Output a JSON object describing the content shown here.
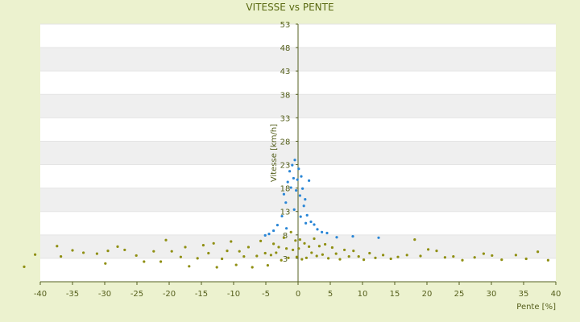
{
  "chart_data": {
    "type": "scatter",
    "title": "VITESSE vs PENTE",
    "xlabel": "Pente [%]",
    "ylabel": "Vitesse [km/h]",
    "xlim": [
      -40,
      40
    ],
    "ylim": [
      -2,
      53
    ],
    "x_ticks": [
      -40,
      -35,
      -30,
      -25,
      -20,
      -15,
      -10,
      -5,
      0,
      5,
      10,
      15,
      20,
      25,
      30,
      35,
      40
    ],
    "y_ticks": [
      3,
      8,
      13,
      18,
      23,
      28,
      33,
      38,
      43,
      48,
      53
    ],
    "colors": {
      "background": "#ecf2cf",
      "plot_white": "#ffffff",
      "plot_band": "#efefef",
      "axis": "#556022",
      "text": "#555f1c",
      "olive_points": "#8f8f12",
      "blue_points": "#2a86d6"
    },
    "series": [
      {
        "points": [
          [
            -42.5,
            1.2
          ],
          [
            -40.8,
            3.8
          ],
          [
            -37.4,
            5.6
          ],
          [
            -36.8,
            3.4
          ],
          [
            -35.0,
            4.7
          ],
          [
            -33.3,
            4.2
          ],
          [
            -31.2,
            4.0
          ],
          [
            -29.9,
            1.9
          ],
          [
            -29.5,
            4.6
          ],
          [
            -28.0,
            5.5
          ],
          [
            -26.9,
            4.8
          ],
          [
            -25.1,
            3.6
          ],
          [
            -23.9,
            2.3
          ],
          [
            -22.4,
            4.5
          ],
          [
            -21.3,
            2.3
          ],
          [
            -20.5,
            6.9
          ],
          [
            -19.6,
            4.5
          ],
          [
            -18.2,
            3.3
          ],
          [
            -17.5,
            5.4
          ],
          [
            -16.9,
            1.3
          ],
          [
            -15.6,
            3.0
          ],
          [
            -14.7,
            5.8
          ],
          [
            -13.9,
            4.1
          ],
          [
            -13.1,
            6.2
          ],
          [
            -12.6,
            1.1
          ],
          [
            -11.8,
            2.9
          ],
          [
            -11.0,
            4.6
          ],
          [
            -10.4,
            6.6
          ],
          [
            -9.6,
            1.6
          ],
          [
            -9.1,
            4.5
          ],
          [
            -8.4,
            3.4
          ],
          [
            -7.7,
            5.4
          ],
          [
            -7.1,
            1.1
          ],
          [
            -6.4,
            3.5
          ],
          [
            -5.8,
            6.7
          ],
          [
            -5.1,
            4.1
          ],
          [
            -4.7,
            1.5
          ],
          [
            -4.2,
            3.7
          ],
          [
            -3.8,
            6.1
          ],
          [
            -3.4,
            4.2
          ],
          [
            -3.0,
            5.4
          ],
          [
            -2.6,
            2.6
          ],
          [
            -2.2,
            7.4
          ],
          [
            -1.8,
            5.1
          ],
          [
            -1.5,
            3.1
          ],
          [
            -1.1,
            8.6
          ],
          [
            -0.8,
            4.8
          ],
          [
            -0.4,
            6.8
          ],
          [
            -0.2,
            3.3
          ],
          [
            0.1,
            5.1
          ],
          [
            0.3,
            7.0
          ],
          [
            0.6,
            2.8
          ],
          [
            1.0,
            6.2
          ],
          [
            1.3,
            3.1
          ],
          [
            1.7,
            5.5
          ],
          [
            2.1,
            4.2
          ],
          [
            2.5,
            7.2
          ],
          [
            2.9,
            3.5
          ],
          [
            3.3,
            5.6
          ],
          [
            3.8,
            3.8
          ],
          [
            4.2,
            6.0
          ],
          [
            4.7,
            3.0
          ],
          [
            5.3,
            5.3
          ],
          [
            5.9,
            4.0
          ],
          [
            6.5,
            2.8
          ],
          [
            7.2,
            4.8
          ],
          [
            7.9,
            3.4
          ],
          [
            8.6,
            4.6
          ],
          [
            9.4,
            3.4
          ],
          [
            10.2,
            2.7
          ],
          [
            11.1,
            4.1
          ],
          [
            12.0,
            3.1
          ],
          [
            13.2,
            3.7
          ],
          [
            14.4,
            2.9
          ],
          [
            15.5,
            3.3
          ],
          [
            16.9,
            3.7
          ],
          [
            18.1,
            7.0
          ],
          [
            19.0,
            3.5
          ],
          [
            20.2,
            4.9
          ],
          [
            21.5,
            4.6
          ],
          [
            22.8,
            3.2
          ],
          [
            24.1,
            3.4
          ],
          [
            25.5,
            2.6
          ],
          [
            27.4,
            3.2
          ],
          [
            28.8,
            4.0
          ],
          [
            30.1,
            3.6
          ],
          [
            31.6,
            2.7
          ],
          [
            33.8,
            3.7
          ],
          [
            35.4,
            2.9
          ],
          [
            37.2,
            4.4
          ],
          [
            38.8,
            2.6
          ]
        ]
      },
      {
        "points": [
          [
            -2.5,
            12.0
          ],
          [
            -2.2,
            16.7
          ],
          [
            -1.9,
            14.9
          ],
          [
            -1.6,
            19.3
          ],
          [
            -1.3,
            21.6
          ],
          [
            -1.1,
            18.1
          ],
          [
            -0.9,
            22.9
          ],
          [
            -0.7,
            20.1
          ],
          [
            -0.5,
            24.0
          ],
          [
            -0.3,
            17.5
          ],
          [
            -0.1,
            19.8
          ],
          [
            0.1,
            22.1
          ],
          [
            0.3,
            16.4
          ],
          [
            0.5,
            20.5
          ],
          [
            0.7,
            17.9
          ],
          [
            0.9,
            14.2
          ],
          [
            1.1,
            15.6
          ],
          [
            1.4,
            12.2
          ],
          [
            1.7,
            19.6
          ],
          [
            2.0,
            10.8
          ],
          [
            2.5,
            10.2
          ],
          [
            3.0,
            9.2
          ],
          [
            3.7,
            8.6
          ],
          [
            4.5,
            8.4
          ],
          [
            -3.2,
            10.1
          ],
          [
            -3.8,
            8.9
          ],
          [
            -4.5,
            8.2
          ],
          [
            -5.1,
            7.9
          ],
          [
            -1.8,
            9.4
          ],
          [
            -0.6,
            13.4
          ],
          [
            0.4,
            11.9
          ],
          [
            1.2,
            10.5
          ],
          [
            6.0,
            7.5
          ],
          [
            8.5,
            7.7
          ],
          [
            12.5,
            7.4
          ]
        ]
      }
    ]
  }
}
